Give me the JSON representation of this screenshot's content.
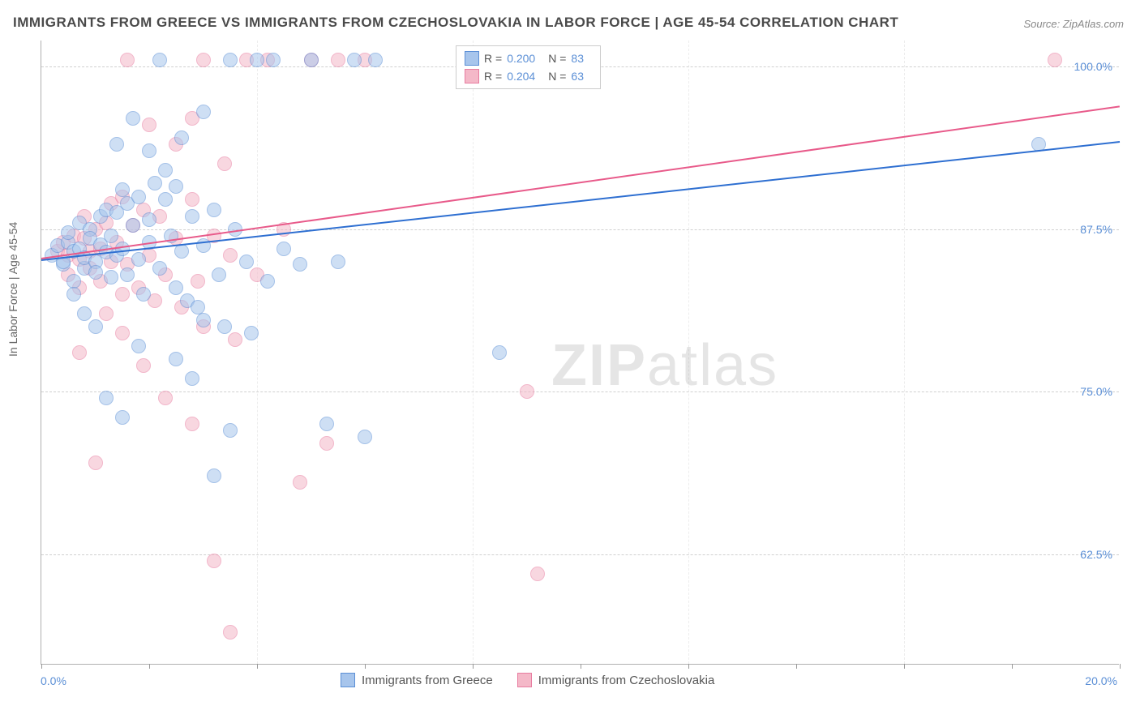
{
  "title": "IMMIGRANTS FROM GREECE VS IMMIGRANTS FROM CZECHOSLOVAKIA IN LABOR FORCE | AGE 45-54 CORRELATION CHART",
  "source": "Source: ZipAtlas.com",
  "ylabel": "In Labor Force | Age 45-54",
  "watermark_bold": "ZIP",
  "watermark_light": "atlas",
  "chart": {
    "type": "scatter",
    "xlim": [
      0.0,
      20.0
    ],
    "ylim": [
      54.0,
      102.0
    ],
    "x_tick_labels": [
      "0.0%",
      "20.0%"
    ],
    "y_ticks": [
      62.5,
      75.0,
      87.5,
      100.0
    ],
    "y_tick_labels": [
      "62.5%",
      "75.0%",
      "87.5%",
      "100.0%"
    ],
    "x_minor_ticks": [
      0,
      2,
      4,
      6,
      8,
      10,
      12,
      14,
      16,
      18,
      20
    ],
    "grid_color": "#d0d0d0",
    "background_color": "#ffffff",
    "marker_radius": 9,
    "marker_opacity": 0.55,
    "series": [
      {
        "name": "Immigrants from Greece",
        "color_fill": "#a7c5ec",
        "color_stroke": "#5b8fd6",
        "trend_color": "#2e6fd1",
        "R": "0.200",
        "N": "83",
        "trend": {
          "x1": 0.0,
          "y1": 85.2,
          "x2": 20.0,
          "y2": 94.3
        },
        "points": [
          [
            0.2,
            85.5
          ],
          [
            0.3,
            86.2
          ],
          [
            0.4,
            84.8
          ],
          [
            0.4,
            85.0
          ],
          [
            0.5,
            86.5
          ],
          [
            0.5,
            87.2
          ],
          [
            0.6,
            85.8
          ],
          [
            0.6,
            83.5
          ],
          [
            0.7,
            86.0
          ],
          [
            0.7,
            88.0
          ],
          [
            0.8,
            84.5
          ],
          [
            0.8,
            85.3
          ],
          [
            0.9,
            87.5
          ],
          [
            0.9,
            86.8
          ],
          [
            1.0,
            85.0
          ],
          [
            1.0,
            84.2
          ],
          [
            1.1,
            88.5
          ],
          [
            1.1,
            86.3
          ],
          [
            1.2,
            85.7
          ],
          [
            1.2,
            89.0
          ],
          [
            1.3,
            87.0
          ],
          [
            1.3,
            83.8
          ],
          [
            1.4,
            88.8
          ],
          [
            1.4,
            85.5
          ],
          [
            1.5,
            90.5
          ],
          [
            1.5,
            86.0
          ],
          [
            1.6,
            84.0
          ],
          [
            1.6,
            89.5
          ],
          [
            1.7,
            87.8
          ],
          [
            1.8,
            85.2
          ],
          [
            1.8,
            90.0
          ],
          [
            1.9,
            82.5
          ],
          [
            2.0,
            88.2
          ],
          [
            2.0,
            86.5
          ],
          [
            2.1,
            91.0
          ],
          [
            2.2,
            84.5
          ],
          [
            2.3,
            89.8
          ],
          [
            2.4,
            87.0
          ],
          [
            2.5,
            83.0
          ],
          [
            2.5,
            90.8
          ],
          [
            2.6,
            85.8
          ],
          [
            2.7,
            82.0
          ],
          [
            2.8,
            88.5
          ],
          [
            2.9,
            81.5
          ],
          [
            3.0,
            86.2
          ],
          [
            3.0,
            80.5
          ],
          [
            3.2,
            89.0
          ],
          [
            3.3,
            84.0
          ],
          [
            3.4,
            80.0
          ],
          [
            3.5,
            100.5
          ],
          [
            3.6,
            87.5
          ],
          [
            3.8,
            85.0
          ],
          [
            3.9,
            79.5
          ],
          [
            4.0,
            100.5
          ],
          [
            4.2,
            83.5
          ],
          [
            4.3,
            100.5
          ],
          [
            4.5,
            86.0
          ],
          [
            4.8,
            84.8
          ],
          [
            5.0,
            100.5
          ],
          [
            5.3,
            72.5
          ],
          [
            5.5,
            85.0
          ],
          [
            5.8,
            100.5
          ],
          [
            6.0,
            71.5
          ],
          [
            6.2,
            100.5
          ],
          [
            2.5,
            77.5
          ],
          [
            2.8,
            76.0
          ],
          [
            3.5,
            72.0
          ],
          [
            3.2,
            68.5
          ],
          [
            1.8,
            78.5
          ],
          [
            1.5,
            73.0
          ],
          [
            1.2,
            74.5
          ],
          [
            1.0,
            80.0
          ],
          [
            0.8,
            81.0
          ],
          [
            0.6,
            82.5
          ],
          [
            2.0,
            93.5
          ],
          [
            2.3,
            92.0
          ],
          [
            2.6,
            94.5
          ],
          [
            1.4,
            94.0
          ],
          [
            1.7,
            96.0
          ],
          [
            8.5,
            78.0
          ],
          [
            18.5,
            94.0
          ],
          [
            3.0,
            96.5
          ],
          [
            2.2,
            100.5
          ]
        ]
      },
      {
        "name": "Immigrants from Czechoslovakia",
        "color_fill": "#f4b8c8",
        "color_stroke": "#e87ca0",
        "trend_color": "#e85a8a",
        "R": "0.204",
        "N": "63",
        "trend": {
          "x1": 0.0,
          "y1": 85.3,
          "x2": 20.0,
          "y2": 97.0
        },
        "points": [
          [
            0.3,
            85.8
          ],
          [
            0.4,
            86.5
          ],
          [
            0.5,
            84.0
          ],
          [
            0.5,
            85.5
          ],
          [
            0.6,
            87.0
          ],
          [
            0.7,
            85.2
          ],
          [
            0.7,
            83.0
          ],
          [
            0.8,
            86.8
          ],
          [
            0.8,
            88.5
          ],
          [
            0.9,
            84.5
          ],
          [
            0.9,
            85.8
          ],
          [
            1.0,
            87.5
          ],
          [
            1.1,
            86.0
          ],
          [
            1.1,
            83.5
          ],
          [
            1.2,
            88.0
          ],
          [
            1.3,
            85.0
          ],
          [
            1.3,
            89.5
          ],
          [
            1.4,
            86.5
          ],
          [
            1.5,
            82.5
          ],
          [
            1.5,
            90.0
          ],
          [
            1.6,
            84.8
          ],
          [
            1.7,
            87.8
          ],
          [
            1.8,
            83.0
          ],
          [
            1.9,
            89.0
          ],
          [
            2.0,
            85.5
          ],
          [
            2.1,
            82.0
          ],
          [
            2.2,
            88.5
          ],
          [
            2.3,
            84.0
          ],
          [
            2.5,
            86.8
          ],
          [
            2.6,
            81.5
          ],
          [
            2.8,
            89.8
          ],
          [
            2.9,
            83.5
          ],
          [
            3.0,
            80.0
          ],
          [
            3.2,
            87.0
          ],
          [
            3.4,
            92.5
          ],
          [
            3.5,
            85.5
          ],
          [
            3.6,
            79.0
          ],
          [
            3.8,
            100.5
          ],
          [
            4.0,
            84.0
          ],
          [
            4.2,
            100.5
          ],
          [
            4.5,
            87.5
          ],
          [
            4.8,
            68.0
          ],
          [
            5.0,
            100.5
          ],
          [
            5.3,
            71.0
          ],
          [
            5.5,
            100.5
          ],
          [
            6.0,
            100.5
          ],
          [
            2.0,
            95.5
          ],
          [
            2.5,
            94.0
          ],
          [
            2.8,
            96.0
          ],
          [
            1.2,
            81.0
          ],
          [
            1.5,
            79.5
          ],
          [
            1.9,
            77.0
          ],
          [
            2.3,
            74.5
          ],
          [
            2.8,
            72.5
          ],
          [
            3.2,
            62.0
          ],
          [
            3.5,
            56.5
          ],
          [
            1.0,
            69.5
          ],
          [
            0.7,
            78.0
          ],
          [
            9.0,
            75.0
          ],
          [
            9.2,
            61.0
          ],
          [
            18.8,
            100.5
          ],
          [
            3.0,
            100.5
          ],
          [
            1.6,
            100.5
          ]
        ]
      }
    ]
  },
  "legend_bottom": {
    "series1_label": "Immigrants from Greece",
    "series2_label": "Immigrants from Czechoslovakia"
  }
}
